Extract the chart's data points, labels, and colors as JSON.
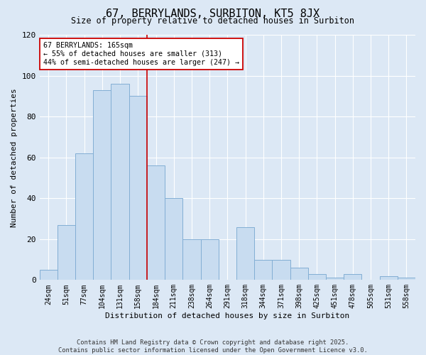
{
  "title": "67, BERRYLANDS, SURBITON, KT5 8JX",
  "subtitle": "Size of property relative to detached houses in Surbiton",
  "xlabel": "Distribution of detached houses by size in Surbiton",
  "ylabel": "Number of detached properties",
  "bar_labels": [
    "24sqm",
    "51sqm",
    "77sqm",
    "104sqm",
    "131sqm",
    "158sqm",
    "184sqm",
    "211sqm",
    "238sqm",
    "264sqm",
    "291sqm",
    "318sqm",
    "344sqm",
    "371sqm",
    "398sqm",
    "425sqm",
    "451sqm",
    "478sqm",
    "505sqm",
    "531sqm",
    "558sqm"
  ],
  "bar_values": [
    5,
    27,
    62,
    93,
    96,
    90,
    56,
    40,
    20,
    20,
    0,
    26,
    10,
    10,
    6,
    3,
    1,
    3,
    0,
    2,
    1
  ],
  "bar_color": "#c8dcf0",
  "bar_edge_color": "#82aed4",
  "vline_x_index": 5,
  "vline_color": "#cc0000",
  "annotation_line1": "67 BERRYLANDS: 165sqm",
  "annotation_line2": "← 55% of detached houses are smaller (313)",
  "annotation_line3": "44% of semi-detached houses are larger (247) →",
  "annotation_box_color": "#ffffff",
  "annotation_box_edge": "#cc0000",
  "ylim": [
    0,
    120
  ],
  "yticks": [
    0,
    20,
    40,
    60,
    80,
    100,
    120
  ],
  "background_color": "#dce8f5",
  "footer1": "Contains HM Land Registry data © Crown copyright and database right 2025.",
  "footer2": "Contains public sector information licensed under the Open Government Licence v3.0."
}
